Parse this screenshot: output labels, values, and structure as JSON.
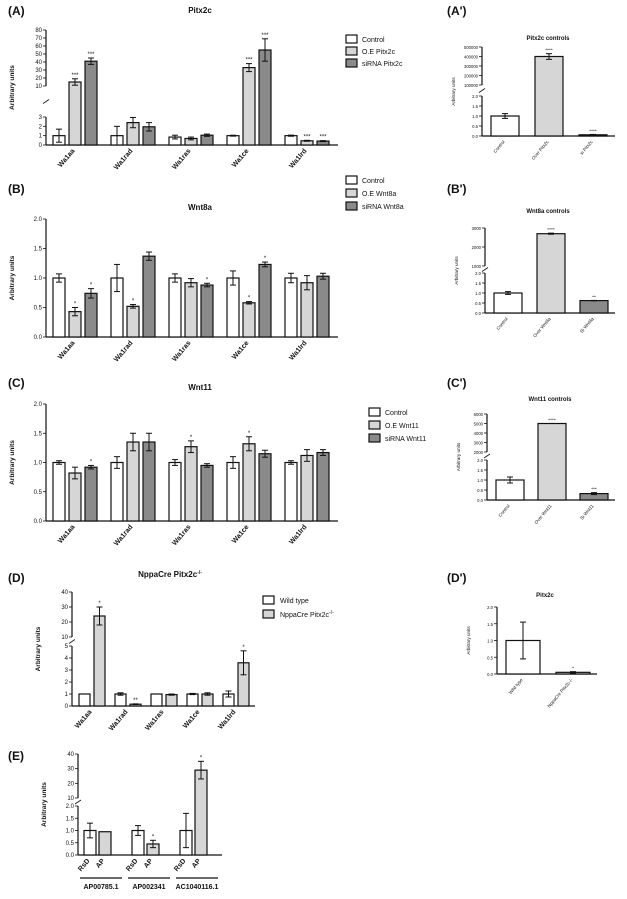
{
  "chart_data": [
    {
      "id": "A",
      "type": "bar",
      "panel_label": "(A)",
      "title": "Pitx2c",
      "ylabel": "Arbitrary units",
      "categories": [
        "Wa1aa",
        "Wa1rad",
        "Wa1ras",
        "Wa1ce",
        "Wa1lrd"
      ],
      "series": [
        {
          "name": "Control",
          "color": "#ffffff",
          "values": [
            1,
            1,
            0.85,
            1,
            1
          ],
          "errors": [
            0.7,
            1.0,
            0.2,
            0.05,
            0.06
          ],
          "stars": [
            "",
            "",
            "",
            "",
            ""
          ]
        },
        {
          "name": "O.E Pitx2c",
          "color": "#d6d6d6",
          "values": [
            15,
            2.4,
            0.7,
            33,
            0.45
          ],
          "errors": [
            4,
            0.55,
            0.15,
            5,
            0.05
          ],
          "stars": [
            "***",
            "",
            "",
            "***",
            "***"
          ]
        },
        {
          "name": "siRNA Pitx2c",
          "color": "#8a8a8a",
          "values": [
            41,
            1.95,
            1.05,
            55,
            0.42
          ],
          "errors": [
            4,
            0.45,
            0.12,
            14,
            0.05
          ],
          "stars": [
            "***",
            "",
            "",
            "***",
            "***"
          ]
        }
      ],
      "y_segments": [
        {
          "range": [
            0,
            3
          ],
          "ticks": [
            0,
            1,
            2,
            3
          ]
        },
        {
          "range": [
            10,
            80
          ],
          "ticks": [
            10,
            20,
            30,
            40,
            50,
            60,
            70,
            80
          ]
        }
      ]
    },
    {
      "id": "A2",
      "type": "bar",
      "panel_label": "(A')",
      "title": "Pitx2c controls",
      "ylabel": "Arbitrary units",
      "categories": [
        "Control",
        "Over Pitx2c",
        "si Pitx2c"
      ],
      "series": [
        {
          "name": "",
          "colors": [
            "#ffffff",
            "#d6d6d6",
            "#8a8a8a"
          ],
          "values": [
            1,
            400000,
            0.06
          ],
          "errors": [
            0.12,
            30000,
            0.02
          ],
          "stars": [
            "",
            "****",
            "****"
          ]
        }
      ],
      "y_segments": [
        {
          "range": [
            0,
            2.0
          ],
          "ticks": [
            0,
            0.5,
            1.0,
            1.5,
            2.0
          ]
        },
        {
          "range": [
            100000,
            500000
          ],
          "ticks": [
            100000,
            200000,
            300000,
            400000,
            500000
          ]
        }
      ]
    },
    {
      "id": "B",
      "type": "bar",
      "panel_label": "(B)",
      "title": "Wnt8a",
      "ylabel": "Arbitrary units",
      "categories": [
        "Wa1aa",
        "Wa1rad",
        "Wa1ras",
        "Wa1ce",
        "Wa1lrd"
      ],
      "series": [
        {
          "name": "Control",
          "color": "#ffffff",
          "values": [
            1,
            1,
            1,
            1,
            1
          ],
          "errors": [
            0.07,
            0.23,
            0.07,
            0.12,
            0.08
          ],
          "stars": [
            "",
            "",
            "",
            "",
            ""
          ]
        },
        {
          "name": "O.E Wnt8a",
          "color": "#d6d6d6",
          "values": [
            0.43,
            0.52,
            0.92,
            0.58,
            0.92
          ],
          "errors": [
            0.07,
            0.03,
            0.07,
            0.02,
            0.12
          ],
          "stars": [
            "*",
            "*",
            "",
            "*",
            ""
          ]
        },
        {
          "name": "siRNA Wnt8a",
          "color": "#8a8a8a",
          "values": [
            0.74,
            1.37,
            0.88,
            1.23,
            1.03
          ],
          "errors": [
            0.08,
            0.07,
            0.03,
            0.04,
            0.05
          ],
          "stars": [
            "*",
            "",
            "*",
            "*",
            ""
          ]
        }
      ],
      "y_segments": [
        {
          "range": [
            0,
            2.0
          ],
          "ticks": [
            0,
            0.5,
            1.0,
            1.5,
            2.0
          ]
        }
      ]
    },
    {
      "id": "B2",
      "type": "bar",
      "panel_label": "(B')",
      "title": "Wnt8a controls",
      "ylabel": "Arbitrary units",
      "categories": [
        "Control",
        "Over Wnt8a",
        "Si Wnt8a"
      ],
      "series": [
        {
          "name": "",
          "colors": [
            "#ffffff",
            "#d6d6d6",
            "#8a8a8a"
          ],
          "values": [
            1,
            2700,
            0.62
          ],
          "errors": [
            0.07,
            30,
            0.01
          ],
          "stars": [
            "",
            "****",
            "**"
          ]
        }
      ],
      "y_segments": [
        {
          "range": [
            0,
            2.0
          ],
          "ticks": [
            0,
            0.5,
            1.0,
            1.5,
            2.0
          ]
        },
        {
          "range": [
            1000,
            3000
          ],
          "ticks": [
            1000,
            2000,
            3000
          ]
        }
      ]
    },
    {
      "id": "C",
      "type": "bar",
      "panel_label": "(C)",
      "title": "Wnt11",
      "ylabel": "Arbitrary units",
      "categories": [
        "Wa1aa",
        "Wa1rad",
        "Wa1ras",
        "Wa1ce",
        "Wa1lrd"
      ],
      "series": [
        {
          "name": "Control",
          "color": "#ffffff",
          "values": [
            1,
            1,
            1,
            1,
            1
          ],
          "errors": [
            0.03,
            0.1,
            0.05,
            0.1,
            0.03
          ],
          "stars": [
            "",
            "",
            "",
            "",
            ""
          ]
        },
        {
          "name": "O.E Wnt11",
          "color": "#d6d6d6",
          "values": [
            0.82,
            1.35,
            1.27,
            1.32,
            1.12
          ],
          "errors": [
            0.1,
            0.15,
            0.1,
            0.12,
            0.1
          ],
          "stars": [
            "",
            "",
            "*",
            "*",
            ""
          ]
        },
        {
          "name": "siRNA Wnt11",
          "color": "#8a8a8a",
          "values": [
            0.92,
            1.35,
            0.95,
            1.15,
            1.17
          ],
          "errors": [
            0.03,
            0.15,
            0.03,
            0.06,
            0.05
          ],
          "stars": [
            "*",
            "",
            "",
            "",
            ""
          ]
        }
      ],
      "y_segments": [
        {
          "range": [
            0,
            2.0
          ],
          "ticks": [
            0,
            0.5,
            1.0,
            1.5,
            2.0
          ]
        }
      ]
    },
    {
      "id": "C2",
      "type": "bar",
      "panel_label": "(C')",
      "title": "Wnt11 controls",
      "ylabel": "Arbitrary units",
      "categories": [
        "Control",
        "Over Wnt11",
        "Si Wnt11"
      ],
      "series": [
        {
          "name": "",
          "colors": [
            "#ffffff",
            "#d6d6d6",
            "#8a8a8a"
          ],
          "values": [
            1,
            5000,
            0.32
          ],
          "errors": [
            0.15,
            0,
            0.05
          ],
          "stars": [
            "",
            "****",
            "***"
          ]
        }
      ],
      "y_segments": [
        {
          "range": [
            0,
            2.0
          ],
          "ticks": [
            0,
            0.5,
            1.0,
            1.5,
            2.0
          ]
        },
        {
          "range": [
            2000,
            6000
          ],
          "ticks": [
            2000,
            3000,
            4000,
            5000,
            6000
          ]
        }
      ]
    },
    {
      "id": "D",
      "type": "bar",
      "panel_label": "(D)",
      "title": "NppaCre Pitx2c",
      "title_superscript": "-/-",
      "ylabel": "Arbitrary units",
      "categories": [
        "Wa1aa",
        "Wa1rad",
        "Wa1ras",
        "Wa1ce",
        "Wa1lrd"
      ],
      "series": [
        {
          "name": "Wild type",
          "color": "#ffffff",
          "values": [
            1,
            1,
            1,
            1,
            1
          ],
          "errors": [
            0,
            0.1,
            0,
            0.05,
            0.25
          ],
          "stars": [
            "",
            "",
            "",
            "",
            ""
          ]
        },
        {
          "name": "NppaCre Pitx2c",
          "name_superscript": "-/-",
          "color": "#d6d6d6",
          "values": [
            24,
            0.15,
            0.95,
            1,
            3.6
          ],
          "errors": [
            6,
            0.03,
            0.05,
            0.1,
            1.0
          ],
          "stars": [
            "*",
            "**",
            "",
            "",
            "*"
          ]
        }
      ],
      "y_segments": [
        {
          "range": [
            0,
            5
          ],
          "ticks": [
            0,
            1,
            2,
            3,
            4,
            5
          ]
        },
        {
          "range": [
            10,
            40
          ],
          "ticks": [
            10,
            20,
            30,
            40
          ]
        }
      ]
    },
    {
      "id": "D2",
      "type": "bar",
      "panel_label": "(D')",
      "title": "Pitx2c",
      "ylabel": "Arbitrary units",
      "categories": [
        "Wild type",
        "NppaCre Pitx2c-/-"
      ],
      "series": [
        {
          "name": "",
          "colors": [
            "#ffffff",
            "#d6d6d6"
          ],
          "values": [
            1,
            0.05
          ],
          "errors": [
            0.55,
            0.02
          ],
          "stars": [
            "",
            "*"
          ]
        }
      ],
      "y_segments": [
        {
          "range": [
            0,
            2.0
          ],
          "ticks": [
            0,
            0.5,
            1.0,
            1.5,
            2.0
          ]
        }
      ]
    },
    {
      "id": "E",
      "type": "bar",
      "panel_label": "(E)",
      "ylabel": "Arbitrary units",
      "groups": [
        "AP00785.1",
        "AP002341",
        "AC1040116.1"
      ],
      "categories": [
        "RsD",
        "AP",
        "RsD",
        "AP",
        "RsD",
        "AP"
      ],
      "series": [
        {
          "name": "",
          "colors": [
            "#ffffff",
            "#d6d6d6",
            "#ffffff",
            "#d6d6d6",
            "#ffffff",
            "#d6d6d6"
          ],
          "values": [
            1.0,
            0.95,
            1.0,
            0.45,
            1.0,
            29
          ],
          "errors": [
            0.3,
            0,
            0.2,
            0.15,
            0.7,
            6
          ],
          "stars": [
            "",
            "",
            "",
            "*",
            "",
            "*"
          ]
        }
      ],
      "y_segments": [
        {
          "range": [
            0,
            2.0
          ],
          "ticks": [
            0,
            0.5,
            1.0,
            1.5,
            2.0
          ]
        },
        {
          "range": [
            10,
            40
          ],
          "ticks": [
            10,
            20,
            30,
            40
          ]
        }
      ]
    }
  ]
}
